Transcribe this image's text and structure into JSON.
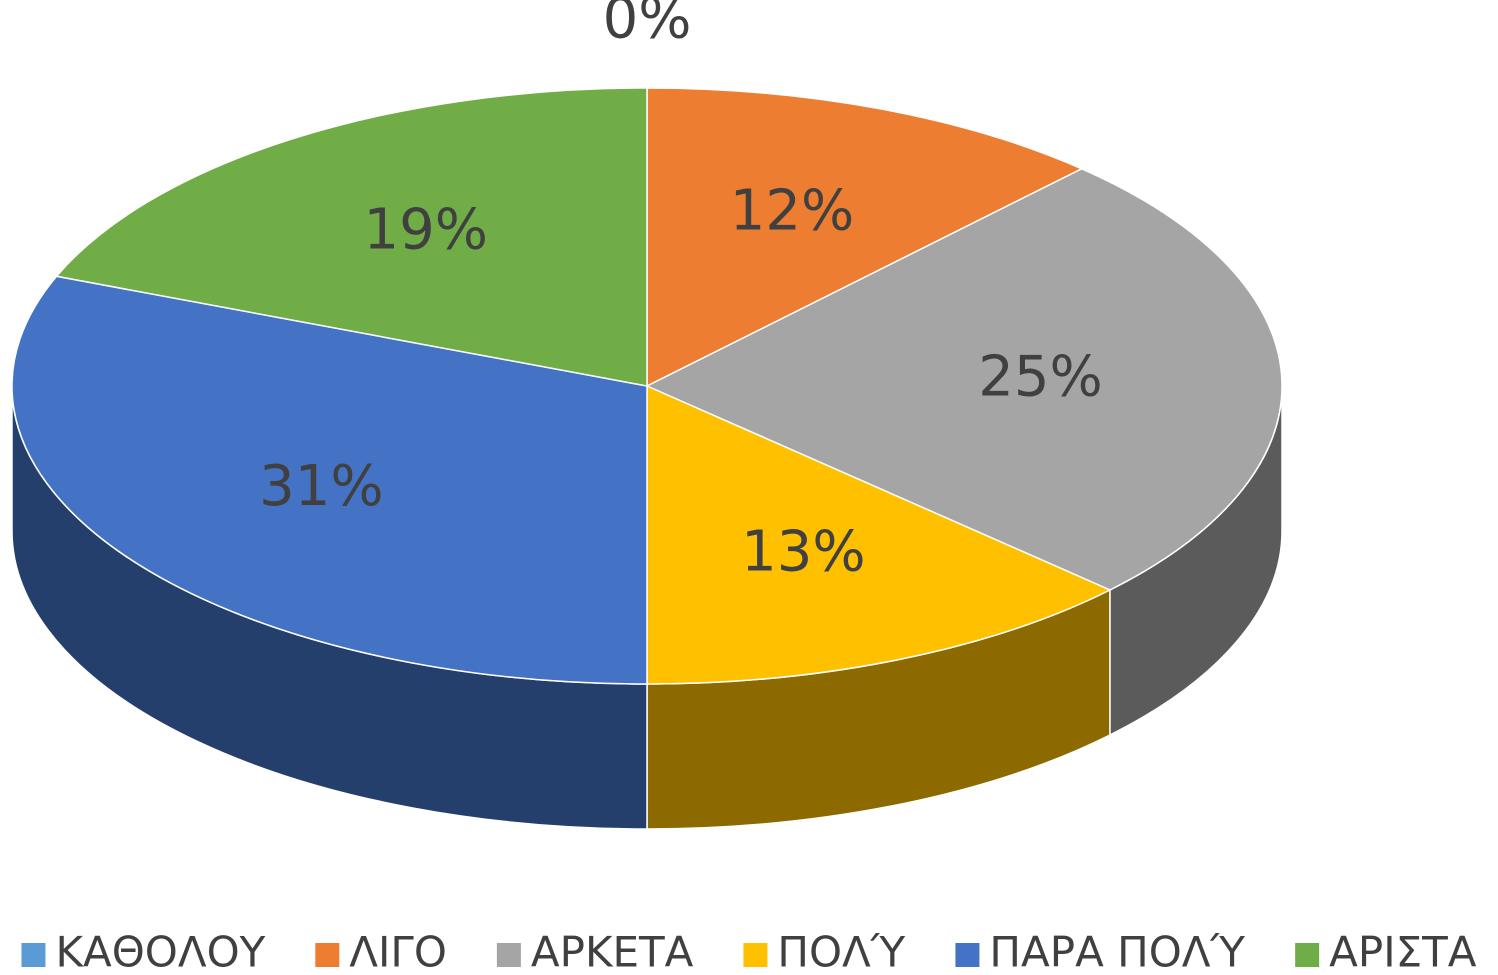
{
  "chart_data": {
    "type": "pie3d",
    "categories": [
      "ΚΑΘΟΛΟΥ",
      "ΛΙΓΟ",
      "ΑΡΚΕΤΑ",
      "ΠΟΛΎ",
      "ΠΑΡΑ ΠΟΛΎ",
      "ΑΡΙΣΤΑ"
    ],
    "values": [
      0,
      12,
      25,
      13,
      31,
      19
    ],
    "value_labels": [
      "0%",
      "12%",
      "25%",
      "13%",
      "31%",
      "19%"
    ],
    "colors": [
      "#5b9bd5",
      "#ed7d31",
      "#a5a5a5",
      "#ffc000",
      "#4472c4",
      "#70ad47"
    ],
    "legend": "bottom"
  }
}
